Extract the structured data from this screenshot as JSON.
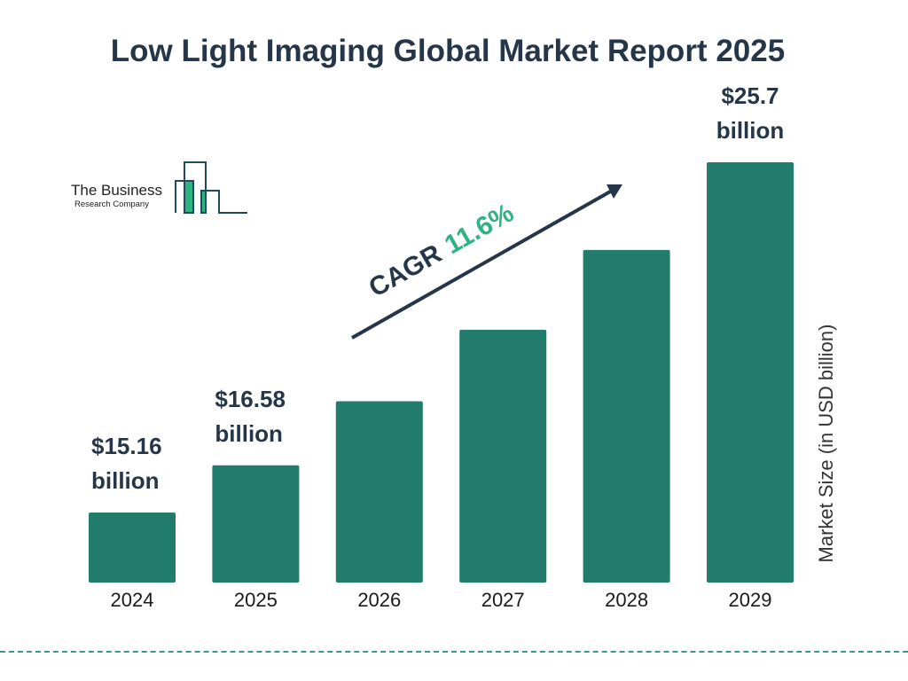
{
  "chart_data": {
    "type": "bar",
    "title": "Low Light Imaging Global Market Report 2025",
    "categories": [
      "2024",
      "2025",
      "2026",
      "2027",
      "2028",
      "2029"
    ],
    "values": [
      15.16,
      16.58,
      18.51,
      20.66,
      23.06,
      25.7
    ],
    "data_labels": [
      {
        "index": 0,
        "amount": "$15.16",
        "unit": "billion"
      },
      {
        "index": 1,
        "amount": "$16.58",
        "unit": "billion"
      },
      {
        "index": 5,
        "amount": "$25.7",
        "unit": "billion"
      }
    ],
    "xlabel": "",
    "ylabel": "Market Size (in USD billion)",
    "grid": false,
    "bar_color": "#217c6c",
    "annotation": {
      "label": "CAGR",
      "value": "11.6%",
      "value_color": "#2db482",
      "arrow_color": "#253649"
    }
  },
  "logo": {
    "line1": "The Business",
    "line2": "Research Company",
    "accent": "#2db482",
    "stroke": "#1f4a5a"
  }
}
